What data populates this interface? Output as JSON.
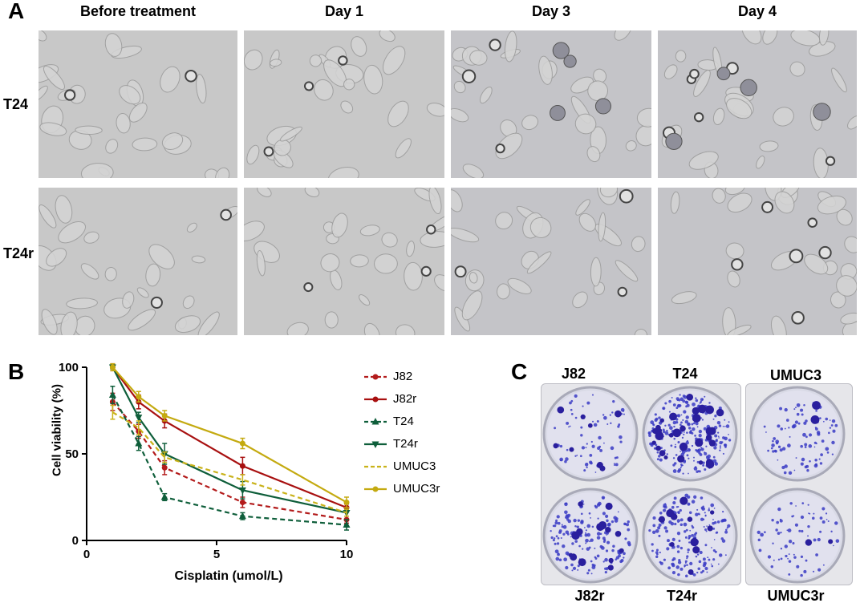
{
  "panel_a": {
    "letter": "A",
    "columns": [
      "Before treatment",
      "Day 1",
      "Day 3",
      "Day 4"
    ],
    "rows": [
      "T24",
      "T24r"
    ]
  },
  "panel_b": {
    "letter": "B",
    "colors": {
      "J82": "#b31b1b",
      "J82r": "#a81010",
      "T24": "#0e5e3a",
      "T24r": "#0e5e3a",
      "UMUC3": "#c9b21a",
      "UMUC3r": "#c4aa10"
    }
  },
  "panel_c": {
    "letter": "C",
    "top_labels": [
      "J82",
      "T24",
      "UMUC3"
    ],
    "bottom_labels": [
      "J82r",
      "T24r",
      "UMUC3r"
    ]
  },
  "chart_data": {
    "type": "line",
    "xlabel": "Cisplatin (umol/L)",
    "ylabel": "Cell viability (%)",
    "xlim": [
      0,
      10
    ],
    "ylim": [
      0,
      100
    ],
    "xticks": [
      "0",
      "5",
      "10"
    ],
    "yticks": [
      "0",
      "50",
      "100"
    ],
    "legend_position": "right",
    "x": [
      1,
      2,
      3,
      6,
      10
    ],
    "series": [
      {
        "name": "J82",
        "values": [
          80,
          63,
          42,
          22,
          12
        ],
        "error": [
          5,
          4,
          4,
          3,
          2
        ],
        "style": "dashed",
        "marker": "circle"
      },
      {
        "name": "J82r",
        "values": [
          100,
          80,
          69,
          43,
          19
        ],
        "error": [
          2,
          4,
          4,
          5,
          2
        ],
        "style": "solid",
        "marker": "circle"
      },
      {
        "name": "T24",
        "values": [
          84,
          56,
          25,
          14,
          9
        ],
        "error": [
          5,
          4,
          2,
          2,
          3
        ],
        "style": "dashed",
        "marker": "triangle-up"
      },
      {
        "name": "T24r",
        "values": [
          100,
          71,
          50,
          29,
          16
        ],
        "error": [
          1,
          3,
          6,
          5,
          2
        ],
        "style": "solid",
        "marker": "triangle-down"
      },
      {
        "name": "UMUC3",
        "values": [
          74,
          65,
          48,
          35,
          16
        ],
        "error": [
          4,
          4,
          3,
          3,
          2
        ],
        "style": "dashed",
        "marker": "none"
      },
      {
        "name": "UMUC3r",
        "values": [
          100,
          83,
          72,
          56,
          22
        ],
        "error": [
          2,
          3,
          3,
          3,
          3
        ],
        "style": "solid",
        "marker": "circle"
      }
    ]
  }
}
